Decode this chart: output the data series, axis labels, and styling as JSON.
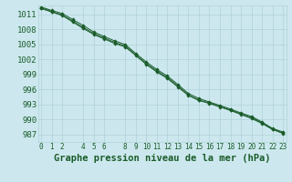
{
  "title": "Graphe pression niveau de la mer (hPa)",
  "background_color": "#cce8ee",
  "grid_color": "#b0d0d8",
  "line_color": "#1a5c2a",
  "marker_color": "#1a5c2a",
  "xlim": [
    -0.3,
    23.3
  ],
  "ylim": [
    985.5,
    1012.8
  ],
  "xticks": [
    0,
    1,
    2,
    4,
    5,
    6,
    8,
    9,
    10,
    11,
    12,
    13,
    14,
    15,
    16,
    17,
    18,
    19,
    20,
    21,
    22,
    23
  ],
  "yticks": [
    987,
    990,
    993,
    996,
    999,
    1002,
    1005,
    1008,
    1011
  ],
  "series": [
    [
      1012.2,
      1011.5,
      1010.8,
      1009.5,
      1008.2,
      1007.0,
      1006.1,
      1005.2,
      1004.5,
      1002.8,
      1001.0,
      999.5,
      998.2,
      996.5,
      994.8,
      993.8,
      993.2,
      992.5,
      991.8,
      991.0,
      990.2,
      989.2,
      988.0,
      987.2
    ],
    [
      1012.5,
      1011.8,
      1011.2,
      1010.0,
      1008.8,
      1007.5,
      1006.6,
      1005.7,
      1005.0,
      1003.2,
      1001.5,
      1000.0,
      998.7,
      997.0,
      995.2,
      994.2,
      993.5,
      992.8,
      992.1,
      991.3,
      990.6,
      989.5,
      988.2,
      987.5
    ],
    [
      1012.3,
      1011.6,
      1010.9,
      1009.7,
      1008.4,
      1007.2,
      1006.3,
      1005.4,
      1004.7,
      1002.9,
      1001.2,
      999.7,
      998.4,
      996.7,
      994.9,
      993.9,
      993.3,
      992.6,
      991.9,
      991.1,
      990.4,
      989.3,
      988.1,
      987.3
    ]
  ],
  "xlabel_fontsize": 7.5,
  "ytick_fontsize": 6.5,
  "xtick_fontsize": 5.5,
  "title_color": "#1a5c2a"
}
